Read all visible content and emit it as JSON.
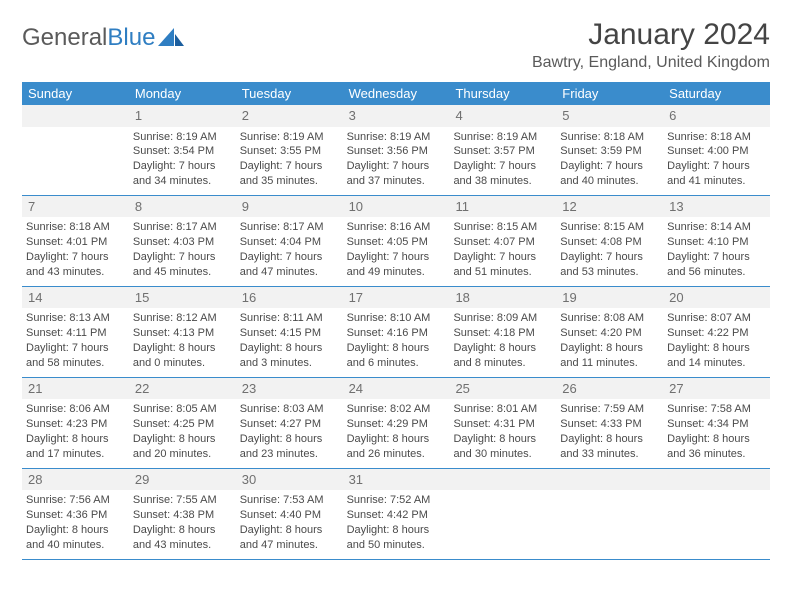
{
  "brand": {
    "part1": "General",
    "part2": "Blue"
  },
  "title": "January 2024",
  "location": "Bawtry, England, United Kingdom",
  "colors": {
    "header_bg": "#3a8ccc",
    "header_text": "#ffffff",
    "daynum_bg": "#f2f2f2",
    "text": "#4a4a4a",
    "rule": "#3a8ccc"
  },
  "day_headers": [
    "Sunday",
    "Monday",
    "Tuesday",
    "Wednesday",
    "Thursday",
    "Friday",
    "Saturday"
  ],
  "weeks": [
    [
      {
        "n": "",
        "blank": true
      },
      {
        "n": "1",
        "sunrise": "8:19 AM",
        "sunset": "3:54 PM",
        "dl1": "Daylight: 7 hours",
        "dl2": "and 34 minutes."
      },
      {
        "n": "2",
        "sunrise": "8:19 AM",
        "sunset": "3:55 PM",
        "dl1": "Daylight: 7 hours",
        "dl2": "and 35 minutes."
      },
      {
        "n": "3",
        "sunrise": "8:19 AM",
        "sunset": "3:56 PM",
        "dl1": "Daylight: 7 hours",
        "dl2": "and 37 minutes."
      },
      {
        "n": "4",
        "sunrise": "8:19 AM",
        "sunset": "3:57 PM",
        "dl1": "Daylight: 7 hours",
        "dl2": "and 38 minutes."
      },
      {
        "n": "5",
        "sunrise": "8:18 AM",
        "sunset": "3:59 PM",
        "dl1": "Daylight: 7 hours",
        "dl2": "and 40 minutes."
      },
      {
        "n": "6",
        "sunrise": "8:18 AM",
        "sunset": "4:00 PM",
        "dl1": "Daylight: 7 hours",
        "dl2": "and 41 minutes."
      }
    ],
    [
      {
        "n": "7",
        "sunrise": "8:18 AM",
        "sunset": "4:01 PM",
        "dl1": "Daylight: 7 hours",
        "dl2": "and 43 minutes."
      },
      {
        "n": "8",
        "sunrise": "8:17 AM",
        "sunset": "4:03 PM",
        "dl1": "Daylight: 7 hours",
        "dl2": "and 45 minutes."
      },
      {
        "n": "9",
        "sunrise": "8:17 AM",
        "sunset": "4:04 PM",
        "dl1": "Daylight: 7 hours",
        "dl2": "and 47 minutes."
      },
      {
        "n": "10",
        "sunrise": "8:16 AM",
        "sunset": "4:05 PM",
        "dl1": "Daylight: 7 hours",
        "dl2": "and 49 minutes."
      },
      {
        "n": "11",
        "sunrise": "8:15 AM",
        "sunset": "4:07 PM",
        "dl1": "Daylight: 7 hours",
        "dl2": "and 51 minutes."
      },
      {
        "n": "12",
        "sunrise": "8:15 AM",
        "sunset": "4:08 PM",
        "dl1": "Daylight: 7 hours",
        "dl2": "and 53 minutes."
      },
      {
        "n": "13",
        "sunrise": "8:14 AM",
        "sunset": "4:10 PM",
        "dl1": "Daylight: 7 hours",
        "dl2": "and 56 minutes."
      }
    ],
    [
      {
        "n": "14",
        "sunrise": "8:13 AM",
        "sunset": "4:11 PM",
        "dl1": "Daylight: 7 hours",
        "dl2": "and 58 minutes."
      },
      {
        "n": "15",
        "sunrise": "8:12 AM",
        "sunset": "4:13 PM",
        "dl1": "Daylight: 8 hours",
        "dl2": "and 0 minutes."
      },
      {
        "n": "16",
        "sunrise": "8:11 AM",
        "sunset": "4:15 PM",
        "dl1": "Daylight: 8 hours",
        "dl2": "and 3 minutes."
      },
      {
        "n": "17",
        "sunrise": "8:10 AM",
        "sunset": "4:16 PM",
        "dl1": "Daylight: 8 hours",
        "dl2": "and 6 minutes."
      },
      {
        "n": "18",
        "sunrise": "8:09 AM",
        "sunset": "4:18 PM",
        "dl1": "Daylight: 8 hours",
        "dl2": "and 8 minutes."
      },
      {
        "n": "19",
        "sunrise": "8:08 AM",
        "sunset": "4:20 PM",
        "dl1": "Daylight: 8 hours",
        "dl2": "and 11 minutes."
      },
      {
        "n": "20",
        "sunrise": "8:07 AM",
        "sunset": "4:22 PM",
        "dl1": "Daylight: 8 hours",
        "dl2": "and 14 minutes."
      }
    ],
    [
      {
        "n": "21",
        "sunrise": "8:06 AM",
        "sunset": "4:23 PM",
        "dl1": "Daylight: 8 hours",
        "dl2": "and 17 minutes."
      },
      {
        "n": "22",
        "sunrise": "8:05 AM",
        "sunset": "4:25 PM",
        "dl1": "Daylight: 8 hours",
        "dl2": "and 20 minutes."
      },
      {
        "n": "23",
        "sunrise": "8:03 AM",
        "sunset": "4:27 PM",
        "dl1": "Daylight: 8 hours",
        "dl2": "and 23 minutes."
      },
      {
        "n": "24",
        "sunrise": "8:02 AM",
        "sunset": "4:29 PM",
        "dl1": "Daylight: 8 hours",
        "dl2": "and 26 minutes."
      },
      {
        "n": "25",
        "sunrise": "8:01 AM",
        "sunset": "4:31 PM",
        "dl1": "Daylight: 8 hours",
        "dl2": "and 30 minutes."
      },
      {
        "n": "26",
        "sunrise": "7:59 AM",
        "sunset": "4:33 PM",
        "dl1": "Daylight: 8 hours",
        "dl2": "and 33 minutes."
      },
      {
        "n": "27",
        "sunrise": "7:58 AM",
        "sunset": "4:34 PM",
        "dl1": "Daylight: 8 hours",
        "dl2": "and 36 minutes."
      }
    ],
    [
      {
        "n": "28",
        "sunrise": "7:56 AM",
        "sunset": "4:36 PM",
        "dl1": "Daylight: 8 hours",
        "dl2": "and 40 minutes."
      },
      {
        "n": "29",
        "sunrise": "7:55 AM",
        "sunset": "4:38 PM",
        "dl1": "Daylight: 8 hours",
        "dl2": "and 43 minutes."
      },
      {
        "n": "30",
        "sunrise": "7:53 AM",
        "sunset": "4:40 PM",
        "dl1": "Daylight: 8 hours",
        "dl2": "and 47 minutes."
      },
      {
        "n": "31",
        "sunrise": "7:52 AM",
        "sunset": "4:42 PM",
        "dl1": "Daylight: 8 hours",
        "dl2": "and 50 minutes."
      },
      {
        "n": "",
        "blank": true
      },
      {
        "n": "",
        "blank": true
      },
      {
        "n": "",
        "blank": true
      }
    ]
  ]
}
